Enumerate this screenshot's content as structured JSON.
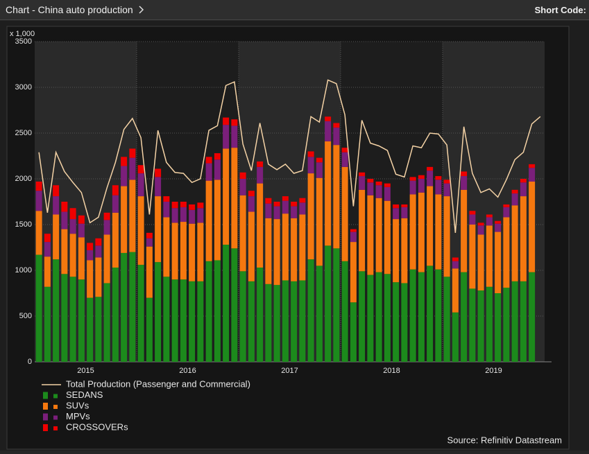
{
  "header": {
    "title": "Chart - China auto production",
    "short_code_label": "Short Code:"
  },
  "chart_data": {
    "type": "bar",
    "stacked": true,
    "y_unit_label": "x 1,000",
    "source": "Source: Refinitiv Datastream",
    "categories": [
      null,
      null,
      null,
      null,
      null,
      null,
      "2015",
      null,
      null,
      null,
      null,
      null,
      null,
      null,
      null,
      null,
      null,
      null,
      "2016",
      null,
      null,
      null,
      null,
      null,
      null,
      null,
      null,
      null,
      null,
      null,
      "2017",
      null,
      null,
      null,
      null,
      null,
      null,
      null,
      null,
      null,
      null,
      null,
      "2018",
      null,
      null,
      null,
      null,
      null,
      null,
      null,
      null,
      null,
      null,
      null,
      "2019",
      null,
      null,
      null,
      null,
      null
    ],
    "ylim": [
      0,
      3500
    ],
    "yticks": [
      0,
      500,
      1000,
      1500,
      2000,
      2500,
      3000,
      3500
    ],
    "grid": true,
    "series": [
      {
        "name": "Total Production (Passenger and Commercial)",
        "type": "line",
        "color": "#f5d3a6",
        "values": [
          2290,
          1630,
          2290,
          2080,
          1960,
          1850,
          1520,
          1580,
          1900,
          2180,
          2540,
          2660,
          2450,
          1610,
          2530,
          2180,
          2070,
          2060,
          1960,
          2000,
          2530,
          2580,
          3020,
          3060,
          2380,
          2090,
          2610,
          2160,
          2100,
          2160,
          2060,
          2090,
          2680,
          2620,
          3080,
          3040,
          2700,
          1700,
          2640,
          2390,
          2360,
          2310,
          2050,
          2020,
          2360,
          2340,
          2500,
          2490,
          2370,
          1410,
          2570,
          2060,
          1850,
          1890,
          1800,
          1990,
          2210,
          2290,
          2600,
          2680
        ]
      },
      {
        "name": "SEDANS",
        "type": "bar",
        "color": "#1c8a1c",
        "values": [
          1170,
          820,
          1120,
          960,
          930,
          900,
          700,
          710,
          860,
          1030,
          1190,
          1200,
          1060,
          700,
          1090,
          930,
          900,
          900,
          880,
          880,
          1100,
          1110,
          1280,
          1240,
          990,
          880,
          1030,
          850,
          840,
          890,
          880,
          890,
          1120,
          1050,
          1270,
          1240,
          1100,
          650,
          990,
          950,
          980,
          960,
          870,
          860,
          1010,
          980,
          1050,
          1010,
          930,
          540,
          980,
          800,
          780,
          820,
          750,
          810,
          880,
          880,
          980,
          null
        ]
      },
      {
        "name": "SUVs",
        "type": "bar",
        "color": "#f5780f",
        "values": [
          480,
          330,
          490,
          490,
          470,
          460,
          410,
          430,
          530,
          600,
          730,
          790,
          750,
          560,
          720,
          650,
          620,
          630,
          630,
          640,
          880,
          880,
          1050,
          1100,
          830,
          760,
          920,
          720,
          720,
          730,
          690,
          720,
          940,
          960,
          1140,
          1130,
          1030,
          660,
          890,
          870,
          810,
          800,
          690,
          710,
          820,
          870,
          870,
          820,
          880,
          480,
          900,
          700,
          610,
          670,
          670,
          770,
          830,
          930,
          990,
          null
        ]
      },
      {
        "name": "MPVs",
        "type": "bar",
        "color": "#7b1f7b",
        "values": [
          220,
          160,
          200,
          190,
          160,
          150,
          110,
          130,
          160,
          190,
          220,
          240,
          250,
          90,
          210,
          170,
          160,
          160,
          150,
          160,
          190,
          220,
          260,
          240,
          180,
          170,
          180,
          160,
          140,
          140,
          130,
          130,
          180,
          170,
          220,
          190,
          160,
          110,
          150,
          140,
          140,
          150,
          120,
          120,
          150,
          150,
          170,
          160,
          140,
          80,
          150,
          110,
          100,
          90,
          90,
          110,
          130,
          150,
          150,
          null
        ]
      },
      {
        "name": "CROSSOVERs",
        "type": "bar",
        "color": "#ee0000",
        "values": [
          100,
          90,
          120,
          110,
          120,
          90,
          80,
          80,
          80,
          110,
          100,
          100,
          90,
          60,
          90,
          60,
          70,
          60,
          60,
          60,
          70,
          70,
          80,
          70,
          70,
          60,
          60,
          60,
          50,
          50,
          50,
          50,
          60,
          50,
          50,
          50,
          50,
          30,
          40,
          40,
          40,
          40,
          40,
          30,
          40,
          40,
          40,
          40,
          40,
          40,
          50,
          40,
          30,
          30,
          30,
          30,
          40,
          40,
          40,
          null
        ]
      }
    ]
  }
}
